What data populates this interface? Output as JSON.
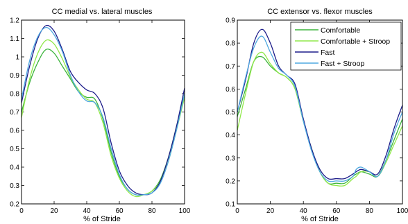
{
  "chart_data": [
    {
      "type": "line",
      "title": "CC  medial vs. lateral muscles",
      "xlabel": "% of Stride",
      "ylabel": "",
      "xlim": [
        0,
        100
      ],
      "ylim": [
        0.2,
        1.2
      ],
      "xticks": [
        "0",
        "20",
        "40",
        "60",
        "80",
        "100"
      ],
      "yticks": [
        "0.2",
        "0.3",
        "0.4",
        "0.5",
        "0.6",
        "0.7",
        "0.8",
        "0.9",
        "1",
        "1.1",
        "1.2"
      ],
      "grid": false,
      "x": [
        0,
        5,
        10,
        15,
        20,
        25,
        30,
        35,
        40,
        45,
        50,
        55,
        60,
        65,
        70,
        75,
        80,
        85,
        90,
        95,
        100
      ],
      "series": [
        {
          "color": "#3cb43c",
          "values": [
            0.7,
            0.86,
            0.97,
            1.04,
            1.02,
            0.95,
            0.88,
            0.81,
            0.78,
            0.77,
            0.66,
            0.48,
            0.35,
            0.28,
            0.25,
            0.25,
            0.27,
            0.33,
            0.45,
            0.62,
            0.8
          ]
        },
        {
          "color": "#90e84a",
          "values": [
            0.67,
            0.88,
            1.02,
            1.09,
            1.07,
            0.99,
            0.89,
            0.82,
            0.77,
            0.75,
            0.64,
            0.46,
            0.34,
            0.27,
            0.24,
            0.25,
            0.27,
            0.32,
            0.43,
            0.6,
            0.78
          ]
        },
        {
          "color": "#1c1c8a",
          "values": [
            0.75,
            0.95,
            1.1,
            1.17,
            1.14,
            1.04,
            0.92,
            0.86,
            0.82,
            0.8,
            0.72,
            0.53,
            0.38,
            0.3,
            0.26,
            0.25,
            0.26,
            0.32,
            0.45,
            0.62,
            0.83
          ]
        },
        {
          "color": "#4fa8e0",
          "values": [
            0.77,
            0.98,
            1.11,
            1.16,
            1.12,
            1.03,
            0.9,
            0.81,
            0.76,
            0.75,
            0.67,
            0.5,
            0.36,
            0.28,
            0.25,
            0.25,
            0.26,
            0.31,
            0.43,
            0.6,
            0.8
          ]
        }
      ]
    },
    {
      "type": "line",
      "title": "CC  extensor vs. flexor muscles",
      "xlabel": "% of Stride",
      "ylabel": "",
      "xlim": [
        0,
        100
      ],
      "ylim": [
        0.1,
        0.9
      ],
      "xticks": [
        "0",
        "20",
        "40",
        "60",
        "80",
        "100"
      ],
      "yticks": [
        "0.1",
        "0.2",
        "0.3",
        "0.4",
        "0.5",
        "0.6",
        "0.7",
        "0.8",
        "0.9"
      ],
      "grid": false,
      "legend_position": "top-right",
      "x": [
        0,
        5,
        10,
        15,
        20,
        25,
        30,
        35,
        40,
        45,
        50,
        55,
        60,
        65,
        70,
        72,
        75,
        80,
        85,
        90,
        95,
        100
      ],
      "series": [
        {
          "name": "Comfortable",
          "color": "#3cb43c",
          "values": [
            0.48,
            0.6,
            0.72,
            0.74,
            0.7,
            0.67,
            0.65,
            0.6,
            0.46,
            0.34,
            0.24,
            0.19,
            0.19,
            0.19,
            0.22,
            0.23,
            0.24,
            0.23,
            0.22,
            0.29,
            0.38,
            0.47
          ]
        },
        {
          "name": "Comfortable + Stroop",
          "color": "#90e84a",
          "values": [
            0.42,
            0.58,
            0.72,
            0.76,
            0.71,
            0.67,
            0.65,
            0.6,
            0.46,
            0.34,
            0.24,
            0.19,
            0.18,
            0.18,
            0.21,
            0.22,
            0.24,
            0.24,
            0.22,
            0.28,
            0.36,
            0.44
          ]
        },
        {
          "name": "Fast",
          "color": "#1c1c8a",
          "values": [
            0.5,
            0.64,
            0.8,
            0.86,
            0.8,
            0.7,
            0.66,
            0.62,
            0.47,
            0.34,
            0.25,
            0.21,
            0.21,
            0.21,
            0.23,
            0.24,
            0.25,
            0.24,
            0.23,
            0.31,
            0.43,
            0.53
          ]
        },
        {
          "name": "Fast + Stroop",
          "color": "#4fa8e0",
          "values": [
            0.5,
            0.65,
            0.78,
            0.83,
            0.76,
            0.69,
            0.66,
            0.61,
            0.46,
            0.33,
            0.24,
            0.2,
            0.2,
            0.2,
            0.22,
            0.25,
            0.26,
            0.24,
            0.22,
            0.29,
            0.41,
            0.5
          ]
        }
      ]
    }
  ]
}
